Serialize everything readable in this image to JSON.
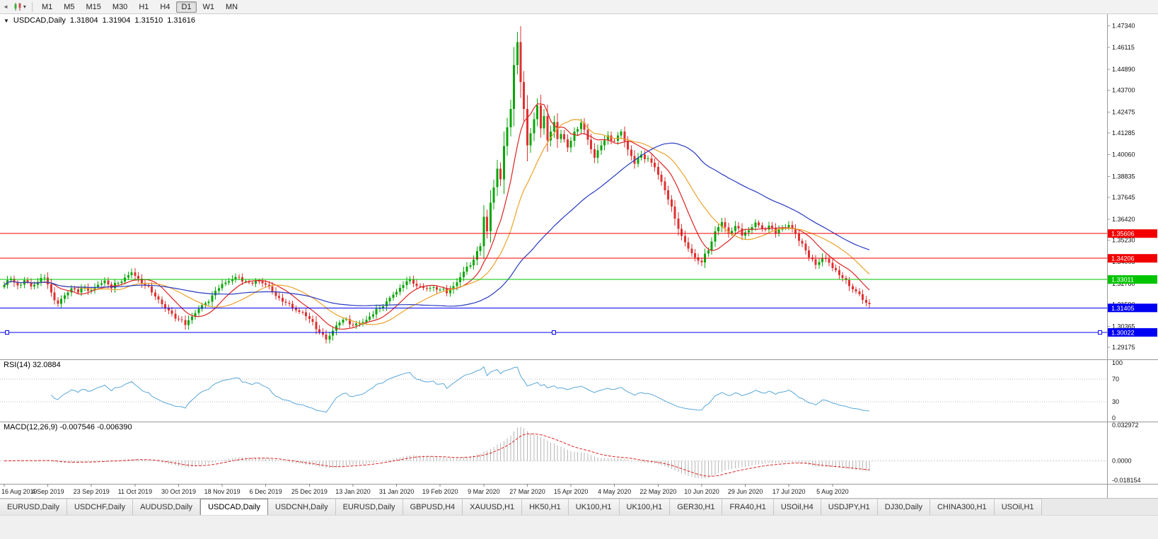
{
  "icons": {
    "collapse": "◄",
    "chart_caret": "▾",
    "header_triangle": "▼"
  },
  "toolbar": {
    "timeframes": [
      "M1",
      "M5",
      "M15",
      "M30",
      "H1",
      "H4",
      "D1",
      "W1",
      "MN"
    ],
    "active": "D1"
  },
  "chart_data": {
    "type": "candlestick",
    "symbol": "USDCAD",
    "timeframe": "Daily",
    "header": {
      "symbol_period": "USDCAD,Daily",
      "open": "1.31804",
      "high": "1.31904",
      "low": "1.31510",
      "close": "1.31616"
    },
    "ylim": [
      1.285,
      1.48
    ],
    "price_axis_ticks": [
      "1.47340",
      "1.46115",
      "1.44890",
      "1.43700",
      "1.42475",
      "1.41285",
      "1.40060",
      "1.38835",
      "1.37645",
      "1.36420",
      "1.35230",
      "1.34005",
      "1.32780",
      "1.31590",
      "1.30365",
      "1.29175"
    ],
    "total_bars": 259,
    "bars_per_x_label": 13,
    "x_labels": [
      "16 Aug 2019",
      "4 Sep 2019",
      "23 Sep 2019",
      "11 Oct 2019",
      "30 Oct 2019",
      "18 Nov 2019",
      "6 Dec 2019",
      "25 Dec 2019",
      "13 Jan 2020",
      "31 Jan 2020",
      "19 Feb 2020",
      "9 Mar 2020",
      "27 Mar 2020",
      "15 Apr 2020",
      "4 May 2020",
      "22 May 2020",
      "10 Jun 2020",
      "29 Jun 2020",
      "17 Jul 2020",
      "5 Aug 2020"
    ],
    "close_anchors": [
      [
        0,
        1.327
      ],
      [
        2,
        1.3305
      ],
      [
        4,
        1.3268
      ],
      [
        6,
        1.3298
      ],
      [
        8,
        1.3262
      ],
      [
        10,
        1.3288
      ],
      [
        12,
        1.3312
      ],
      [
        14,
        1.3228
      ],
      [
        16,
        1.3164
      ],
      [
        18,
        1.3212
      ],
      [
        20,
        1.3252
      ],
      [
        22,
        1.3228
      ],
      [
        24,
        1.3256
      ],
      [
        26,
        1.3242
      ],
      [
        28,
        1.3272
      ],
      [
        30,
        1.3296
      ],
      [
        32,
        1.3252
      ],
      [
        34,
        1.3282
      ],
      [
        36,
        1.3312
      ],
      [
        38,
        1.3342
      ],
      [
        40,
        1.3306
      ],
      [
        42,
        1.3266
      ],
      [
        44,
        1.3228
      ],
      [
        46,
        1.3188
      ],
      [
        48,
        1.3142
      ],
      [
        50,
        1.3108
      ],
      [
        52,
        1.3076
      ],
      [
        54,
        1.3044
      ],
      [
        56,
        1.3092
      ],
      [
        58,
        1.3136
      ],
      [
        60,
        1.3168
      ],
      [
        62,
        1.3212
      ],
      [
        64,
        1.3252
      ],
      [
        66,
        1.3284
      ],
      [
        68,
        1.3304
      ],
      [
        70,
        1.3314
      ],
      [
        72,
        1.3292
      ],
      [
        74,
        1.3278
      ],
      [
        76,
        1.3292
      ],
      [
        78,
        1.3272
      ],
      [
        80,
        1.3232
      ],
      [
        82,
        1.3198
      ],
      [
        84,
        1.317
      ],
      [
        86,
        1.3142
      ],
      [
        88,
        1.3118
      ],
      [
        90,
        1.3094
      ],
      [
        92,
        1.3062
      ],
      [
        94,
        1.3004
      ],
      [
        96,
        1.2962
      ],
      [
        98,
        1.3012
      ],
      [
        100,
        1.3058
      ],
      [
        102,
        1.3078
      ],
      [
        104,
        1.3042
      ],
      [
        106,
        1.3054
      ],
      [
        108,
        1.3074
      ],
      [
        110,
        1.3104
      ],
      [
        112,
        1.3142
      ],
      [
        114,
        1.3178
      ],
      [
        116,
        1.3216
      ],
      [
        118,
        1.3254
      ],
      [
        120,
        1.3292
      ],
      [
        122,
        1.3278
      ],
      [
        124,
        1.3262
      ],
      [
        126,
        1.325
      ],
      [
        128,
        1.3258
      ],
      [
        130,
        1.3244
      ],
      [
        132,
        1.3224
      ],
      [
        134,
        1.3264
      ],
      [
        136,
        1.3314
      ],
      [
        138,
        1.3374
      ],
      [
        140,
        1.3414
      ],
      [
        142,
        1.349
      ],
      [
        143,
        1.3656
      ],
      [
        144,
        1.3574
      ],
      [
        145,
        1.3736
      ],
      [
        146,
        1.3822
      ],
      [
        147,
        1.3926
      ],
      [
        148,
        1.3866
      ],
      [
        149,
        1.4054
      ],
      [
        150,
        1.416
      ],
      [
        151,
        1.4264
      ],
      [
        152,
        1.4512
      ],
      [
        153,
        1.4642
      ],
      [
        154,
        1.4416
      ],
      [
        155,
        1.4264
      ],
      [
        156,
        1.4058
      ],
      [
        157,
        1.4126
      ],
      [
        158,
        1.4206
      ],
      [
        159,
        1.4284
      ],
      [
        160,
        1.4154
      ],
      [
        161,
        1.4224
      ],
      [
        162,
        1.4086
      ],
      [
        163,
        1.4136
      ],
      [
        164,
        1.419
      ],
      [
        165,
        1.4094
      ],
      [
        166,
        1.4122
      ],
      [
        168,
        1.4046
      ],
      [
        170,
        1.4136
      ],
      [
        172,
        1.4186
      ],
      [
        174,
        1.409
      ],
      [
        176,
        1.3988
      ],
      [
        178,
        1.4058
      ],
      [
        180,
        1.4114
      ],
      [
        182,
        1.4084
      ],
      [
        184,
        1.4136
      ],
      [
        186,
        1.4034
      ],
      [
        188,
        1.3954
      ],
      [
        190,
        1.4006
      ],
      [
        192,
        1.3984
      ],
      [
        194,
        1.3936
      ],
      [
        196,
        1.3854
      ],
      [
        198,
        1.3754
      ],
      [
        200,
        1.3646
      ],
      [
        202,
        1.3548
      ],
      [
        204,
        1.3476
      ],
      [
        206,
        1.3426
      ],
      [
        208,
        1.3398
      ],
      [
        210,
        1.3466
      ],
      [
        212,
        1.3574
      ],
      [
        214,
        1.3626
      ],
      [
        216,
        1.3564
      ],
      [
        218,
        1.3604
      ],
      [
        220,
        1.355
      ],
      [
        222,
        1.358
      ],
      [
        224,
        1.3624
      ],
      [
        226,
        1.3586
      ],
      [
        228,
        1.3606
      ],
      [
        230,
        1.3564
      ],
      [
        232,
        1.359
      ],
      [
        234,
        1.361
      ],
      [
        236,
        1.356
      ],
      [
        238,
        1.3504
      ],
      [
        240,
        1.3426
      ],
      [
        242,
        1.3384
      ],
      [
        244,
        1.3424
      ],
      [
        246,
        1.3396
      ],
      [
        248,
        1.3354
      ],
      [
        250,
        1.331
      ],
      [
        252,
        1.3264
      ],
      [
        254,
        1.3234
      ],
      [
        256,
        1.3186
      ],
      [
        258,
        1.31616
      ]
    ],
    "candle_colors": {
      "up": "#0aa60a",
      "down": "#de3232"
    },
    "moving_averages": [
      {
        "type": "SMA",
        "period": 10,
        "color": "#dd2222"
      },
      {
        "type": "SMA",
        "period": 21,
        "color": "#eaa22b"
      },
      {
        "type": "SMA",
        "period": 55,
        "color": "#2739c0"
      }
    ],
    "hlines": [
      {
        "price": 1.35606,
        "label": "1.35606",
        "color": "#f20000",
        "selected": false
      },
      {
        "price": 1.34206,
        "label": "1.34206",
        "color": "#f20000",
        "selected": false
      },
      {
        "price": 1.33011,
        "label": "1.33011",
        "color": "#00c400",
        "selected": false
      },
      {
        "price": 1.31405,
        "label": "1.31405",
        "color": "#0000f2",
        "selected": false
      },
      {
        "price": 1.30022,
        "label": "1.30022",
        "color": "#0000f2",
        "selected": true
      }
    ],
    "indicators": {
      "rsi": {
        "name": "RSI",
        "period": 14,
        "value": "32.0884",
        "label": "RSI(14) 32.0884",
        "axis_ticks": [
          "100",
          "70",
          "30",
          "0"
        ],
        "level_lines": [
          70,
          30
        ],
        "range": [
          0,
          100
        ],
        "color": "#58a6d8"
      },
      "macd": {
        "name": "MACD",
        "params": "12,26,9",
        "values": "-0.007546 -0.006390",
        "label": "MACD(12,26,9) -0.007546 -0.006390",
        "axis_ticks": [
          "0.032972",
          "0.0000",
          "-0.018154"
        ],
        "range": [
          -0.018154,
          0.032972
        ],
        "histogram_color": "#b5b5b5",
        "signal_color": "#dd2222"
      }
    }
  },
  "tabs": {
    "items": [
      {
        "label": "EURUSD,Daily",
        "active": false
      },
      {
        "label": "USDCHF,Daily",
        "active": false
      },
      {
        "label": "AUDUSD,Daily",
        "active": false
      },
      {
        "label": "USDCAD,Daily",
        "active": true
      },
      {
        "label": "USDCNH,Daily",
        "active": false
      },
      {
        "label": "EURUSD,Daily",
        "active": false
      },
      {
        "label": "GBPUSD,H4",
        "active": false
      },
      {
        "label": "XAUUSD,H1",
        "active": false
      },
      {
        "label": "HK50,H1",
        "active": false
      },
      {
        "label": "UK100,H1",
        "active": false
      },
      {
        "label": "UK100,H1",
        "active": false
      },
      {
        "label": "GER30,H1",
        "active": false
      },
      {
        "label": "FRA40,H1",
        "active": false
      },
      {
        "label": "USOil,H4",
        "active": false
      },
      {
        "label": "USDJPY,H1",
        "active": false
      },
      {
        "label": "DJ30,Daily",
        "active": false
      },
      {
        "label": "CHINA300,H1",
        "active": false
      },
      {
        "label": "USOil,H1",
        "active": false
      }
    ]
  }
}
